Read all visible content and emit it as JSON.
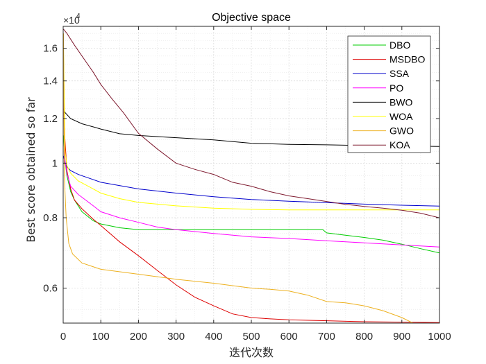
{
  "chart_data": {
    "type": "line",
    "title": "Objective space",
    "xlabel": "迭代次数",
    "ylabel": "Best score obtained so far",
    "y_multiplier_label": "×10",
    "y_multiplier_exponent": "4",
    "y_scale": "log",
    "xlim": [
      0,
      1000
    ],
    "ylim": [
      0.52,
      1.75
    ],
    "x_ticks": [
      0,
      100,
      200,
      300,
      400,
      500,
      600,
      700,
      800,
      900,
      1000
    ],
    "y_ticks": [
      0.6,
      0.8,
      1.0,
      1.2,
      1.4,
      1.6
    ],
    "y_tick_labels": [
      "0.6",
      "0.8",
      "1",
      "1.2",
      "1.4",
      "1.6"
    ],
    "grid": true,
    "legend_position": "top-right",
    "series": [
      {
        "name": "DBO",
        "color": "#00cc00",
        "points": [
          [
            1,
            1.12
          ],
          [
            5,
            1.01
          ],
          [
            10,
            0.95
          ],
          [
            20,
            0.89
          ],
          [
            30,
            0.86
          ],
          [
            50,
            0.82
          ],
          [
            80,
            0.79
          ],
          [
            100,
            0.78
          ],
          [
            150,
            0.768
          ],
          [
            200,
            0.762
          ],
          [
            300,
            0.762
          ],
          [
            500,
            0.762
          ],
          [
            690,
            0.762
          ],
          [
            700,
            0.752
          ],
          [
            750,
            0.745
          ],
          [
            800,
            0.738
          ],
          [
            850,
            0.73
          ],
          [
            900,
            0.718
          ],
          [
            950,
            0.705
          ],
          [
            1000,
            0.693
          ]
        ]
      },
      {
        "name": "MSDBO",
        "color": "#dd0000",
        "points": [
          [
            1,
            1.55
          ],
          [
            4,
            1.12
          ],
          [
            10,
            0.97
          ],
          [
            20,
            0.9
          ],
          [
            30,
            0.86
          ],
          [
            50,
            0.83
          ],
          [
            80,
            0.795
          ],
          [
            100,
            0.775
          ],
          [
            150,
            0.725
          ],
          [
            200,
            0.685
          ],
          [
            250,
            0.645
          ],
          [
            300,
            0.608
          ],
          [
            350,
            0.578
          ],
          [
            400,
            0.558
          ],
          [
            450,
            0.54
          ],
          [
            500,
            0.532
          ],
          [
            550,
            0.529
          ],
          [
            600,
            0.527
          ],
          [
            700,
            0.525
          ],
          [
            800,
            0.523
          ],
          [
            900,
            0.522
          ],
          [
            1000,
            0.521
          ]
        ]
      },
      {
        "name": "SSA",
        "color": "#0000cc",
        "points": [
          [
            1,
            1.03
          ],
          [
            5,
            1.0
          ],
          [
            10,
            0.985
          ],
          [
            20,
            0.97
          ],
          [
            40,
            0.955
          ],
          [
            60,
            0.945
          ],
          [
            100,
            0.925
          ],
          [
            200,
            0.9
          ],
          [
            300,
            0.885
          ],
          [
            400,
            0.872
          ],
          [
            500,
            0.862
          ],
          [
            600,
            0.856
          ],
          [
            700,
            0.851
          ],
          [
            800,
            0.846
          ],
          [
            900,
            0.842
          ],
          [
            1000,
            0.839
          ]
        ]
      },
      {
        "name": "PO",
        "color": "#ff00ff",
        "points": [
          [
            1,
            1.38
          ],
          [
            4,
            1.02
          ],
          [
            10,
            0.96
          ],
          [
            20,
            0.91
          ],
          [
            40,
            0.88
          ],
          [
            60,
            0.86
          ],
          [
            80,
            0.84
          ],
          [
            100,
            0.82
          ],
          [
            150,
            0.8
          ],
          [
            200,
            0.785
          ],
          [
            250,
            0.77
          ],
          [
            300,
            0.762
          ],
          [
            400,
            0.75
          ],
          [
            500,
            0.74
          ],
          [
            600,
            0.735
          ],
          [
            700,
            0.728
          ],
          [
            800,
            0.722
          ],
          [
            900,
            0.716
          ],
          [
            1000,
            0.71
          ]
        ]
      },
      {
        "name": "BWO",
        "color": "#000000",
        "points": [
          [
            1,
            1.25
          ],
          [
            5,
            1.23
          ],
          [
            20,
            1.2
          ],
          [
            50,
            1.175
          ],
          [
            80,
            1.16
          ],
          [
            100,
            1.15
          ],
          [
            150,
            1.128
          ],
          [
            200,
            1.12
          ],
          [
            300,
            1.11
          ],
          [
            400,
            1.1
          ],
          [
            500,
            1.085
          ],
          [
            600,
            1.08
          ],
          [
            700,
            1.078
          ],
          [
            800,
            1.075
          ],
          [
            900,
            1.073
          ],
          [
            1000,
            1.071
          ]
        ]
      },
      {
        "name": "WOA",
        "color": "#ffff00",
        "points": [
          [
            1,
            1.6
          ],
          [
            5,
            1.05
          ],
          [
            10,
            0.99
          ],
          [
            20,
            0.96
          ],
          [
            40,
            0.93
          ],
          [
            60,
            0.915
          ],
          [
            100,
            0.885
          ],
          [
            150,
            0.865
          ],
          [
            200,
            0.852
          ],
          [
            300,
            0.84
          ],
          [
            400,
            0.832
          ],
          [
            500,
            0.828
          ],
          [
            600,
            0.826
          ],
          [
            800,
            0.826
          ],
          [
            1000,
            0.826
          ]
        ]
      },
      {
        "name": "GWO",
        "color": "#edb120",
        "points": [
          [
            1,
            1.7
          ],
          [
            3,
            0.95
          ],
          [
            8,
            0.8
          ],
          [
            15,
            0.72
          ],
          [
            25,
            0.69
          ],
          [
            50,
            0.665
          ],
          [
            100,
            0.648
          ],
          [
            200,
            0.635
          ],
          [
            300,
            0.622
          ],
          [
            400,
            0.612
          ],
          [
            500,
            0.6
          ],
          [
            550,
            0.597
          ],
          [
            600,
            0.593
          ],
          [
            650,
            0.583
          ],
          [
            700,
            0.568
          ],
          [
            750,
            0.565
          ],
          [
            800,
            0.558
          ],
          [
            850,
            0.547
          ],
          [
            900,
            0.532
          ],
          [
            950,
            0.512
          ],
          [
            1000,
            0.505
          ]
        ]
      },
      {
        "name": "KOA",
        "color": "#7e1a2f",
        "points": [
          [
            1,
            1.73
          ],
          [
            10,
            1.7
          ],
          [
            30,
            1.62
          ],
          [
            50,
            1.55
          ],
          [
            80,
            1.45
          ],
          [
            100,
            1.38
          ],
          [
            130,
            1.3
          ],
          [
            160,
            1.23
          ],
          [
            200,
            1.13
          ],
          [
            250,
            1.06
          ],
          [
            300,
            1.0
          ],
          [
            350,
            0.975
          ],
          [
            400,
            0.955
          ],
          [
            450,
            0.925
          ],
          [
            500,
            0.91
          ],
          [
            550,
            0.89
          ],
          [
            600,
            0.875
          ],
          [
            650,
            0.865
          ],
          [
            700,
            0.855
          ],
          [
            750,
            0.845
          ],
          [
            800,
            0.838
          ],
          [
            850,
            0.832
          ],
          [
            900,
            0.825
          ],
          [
            950,
            0.815
          ],
          [
            1000,
            0.8
          ]
        ]
      }
    ]
  }
}
